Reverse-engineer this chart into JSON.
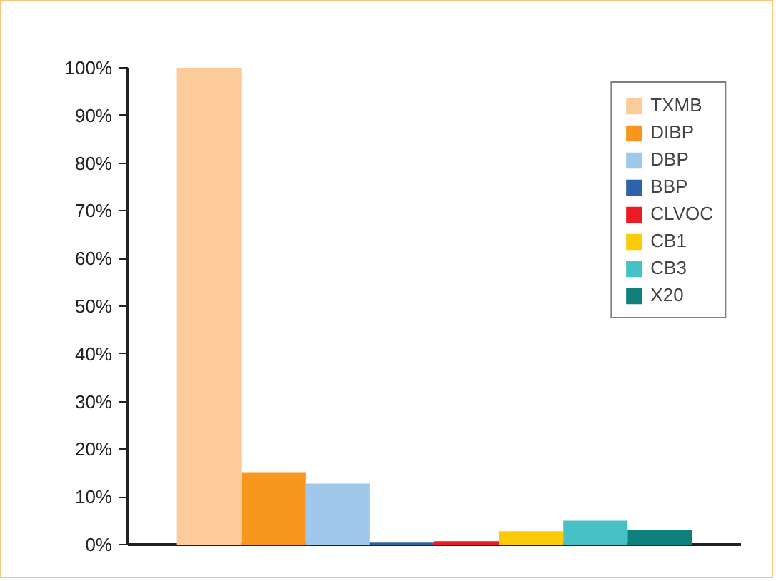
{
  "chart_data": {
    "type": "bar",
    "categories": [
      null
    ],
    "series": [
      {
        "name": "TXMB",
        "color": "#fdcb9a",
        "values": [
          100
        ]
      },
      {
        "name": "DIBP",
        "color": "#f7971e",
        "values": [
          15.2
        ]
      },
      {
        "name": "DBP",
        "color": "#a0c8ea",
        "values": [
          12.8
        ]
      },
      {
        "name": "BBP",
        "color": "#2e63ab",
        "values": [
          0.4
        ]
      },
      {
        "name": "CLVOC",
        "color": "#ec1c24",
        "values": [
          0.7
        ]
      },
      {
        "name": "CB1",
        "color": "#fccb08",
        "values": [
          2.8
        ]
      },
      {
        "name": "CB3",
        "color": "#48c1c4",
        "values": [
          5.0
        ]
      },
      {
        "name": "X20",
        "color": "#10807c",
        "values": [
          3.1
        ]
      }
    ],
    "ylim": [
      0,
      100
    ],
    "yticks": [
      {
        "value": 0,
        "label": "0%"
      },
      {
        "value": 10,
        "label": "10%"
      },
      {
        "value": 20,
        "label": "20%"
      },
      {
        "value": 30,
        "label": "30%"
      },
      {
        "value": 40,
        "label": "40%"
      },
      {
        "value": 50,
        "label": "50%"
      },
      {
        "value": 60,
        "label": "60%"
      },
      {
        "value": 70,
        "label": "70%"
      },
      {
        "value": 80,
        "label": "80%"
      },
      {
        "value": 90,
        "label": "90%"
      },
      {
        "value": 100,
        "label": "100%"
      }
    ],
    "grid": false,
    "legend": "top right"
  }
}
